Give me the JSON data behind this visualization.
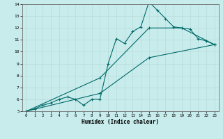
{
  "xlabel": "Humidex (Indice chaleur)",
  "ylabel": "",
  "xlim": [
    -0.5,
    23.5
  ],
  "ylim": [
    5,
    14
  ],
  "xticks": [
    0,
    1,
    2,
    3,
    4,
    5,
    6,
    7,
    8,
    9,
    10,
    11,
    12,
    13,
    14,
    15,
    16,
    17,
    18,
    19,
    20,
    21,
    22,
    23
  ],
  "yticks": [
    5,
    6,
    7,
    8,
    9,
    10,
    11,
    12,
    13,
    14
  ],
  "background_color": "#c8ecec",
  "grid_color": "#b8dada",
  "line_color": "#006868",
  "series": [
    {
      "x": [
        0,
        1,
        2,
        3,
        4,
        5,
        6,
        7,
        8,
        9,
        10,
        11,
        12,
        13,
        14,
        15,
        16,
        17,
        18,
        19,
        20,
        21,
        22,
        23
      ],
      "y": [
        5,
        5.2,
        5.5,
        5.7,
        6.0,
        6.2,
        6.0,
        5.5,
        6.0,
        6.0,
        9.0,
        11.1,
        10.7,
        11.7,
        12.1,
        14.2,
        13.5,
        12.8,
        12.1,
        12.0,
        11.9,
        11.1,
        10.9,
        10.6
      ]
    },
    {
      "x": [
        0,
        9,
        15,
        19,
        23
      ],
      "y": [
        5,
        7.8,
        12.0,
        12.0,
        10.6
      ]
    },
    {
      "x": [
        0,
        9,
        15,
        23
      ],
      "y": [
        5,
        6.5,
        9.5,
        10.6
      ]
    }
  ]
}
